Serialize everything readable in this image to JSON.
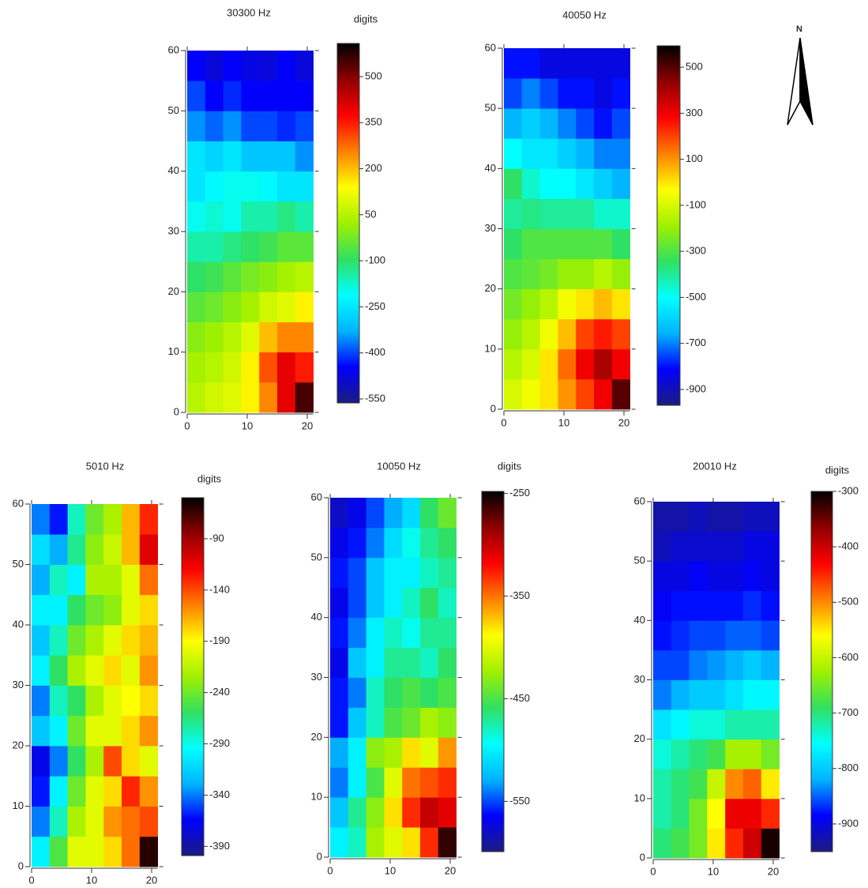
{
  "colormap": [
    "#1c1c80",
    "#0000ff",
    "#00b4ff",
    "#00ffff",
    "#30e060",
    "#a0f000",
    "#ffff00",
    "#ff8000",
    "#ff0000",
    "#900000",
    "#000000"
  ],
  "north_arrow": {
    "label": "N"
  },
  "chart_data": [
    {
      "type": "heatmap",
      "title": "30300 Hz",
      "colorbar_label": "digits",
      "xlim": [
        0,
        21
      ],
      "xticks": [
        0,
        10,
        20
      ],
      "ylim": [
        0,
        60
      ],
      "yticks": [
        0,
        10,
        20,
        30,
        40,
        50,
        60
      ],
      "clim": [
        -563,
        608
      ],
      "cticks": [
        -550,
        -400,
        -250,
        -100,
        50,
        200,
        350,
        500
      ],
      "x": [
        1.5,
        4.5,
        7.5,
        10.5,
        13.5,
        16.5,
        19.5
      ],
      "y": [
        2.5,
        7.5,
        12.5,
        17.5,
        22.5,
        27.5,
        32.5,
        37.5,
        42.5,
        47.5,
        52.5,
        57.5
      ],
      "z": [
        [
          50,
          80,
          100,
          150,
          250,
          400,
          550
        ],
        [
          30,
          50,
          80,
          150,
          300,
          400,
          350
        ],
        [
          0,
          20,
          50,
          100,
          200,
          250,
          250
        ],
        [
          -50,
          -30,
          0,
          30,
          80,
          100,
          150
        ],
        [
          -100,
          -80,
          -50,
          -20,
          0,
          30,
          50
        ],
        [
          -150,
          -150,
          -120,
          -100,
          -80,
          -50,
          -50
        ],
        [
          -200,
          -180,
          -200,
          -150,
          -150,
          -120,
          -150
        ],
        [
          -250,
          -220,
          -200,
          -200,
          -220,
          -250,
          -250
        ],
        [
          -250,
          -280,
          -250,
          -300,
          -300,
          -300,
          -350
        ],
        [
          -350,
          -380,
          -350,
          -400,
          -400,
          -420,
          -400
        ],
        [
          -400,
          -450,
          -420,
          -450,
          -450,
          -450,
          -450
        ],
        [
          -450,
          -480,
          -450,
          -470,
          -480,
          -450,
          -480
        ]
      ]
    },
    {
      "type": "heatmap",
      "title": "40050 Hz",
      "xlim": [
        0,
        21
      ],
      "xticks": [
        0,
        10,
        20
      ],
      "ylim": [
        0,
        60
      ],
      "yticks": [
        0,
        10,
        20,
        30,
        40,
        50,
        60
      ],
      "clim": [
        -969,
        593
      ],
      "cticks": [
        -900,
        -700,
        -500,
        -300,
        -100,
        100,
        300,
        500
      ],
      "x": [
        1.5,
        4.5,
        7.5,
        10.5,
        13.5,
        16.5,
        19.5
      ],
      "y": [
        2.5,
        7.5,
        12.5,
        17.5,
        22.5,
        27.5,
        32.5,
        37.5,
        42.5,
        47.5,
        52.5,
        57.5
      ],
      "z": [
        [
          -100,
          -50,
          0,
          100,
          200,
          300,
          500
        ],
        [
          -150,
          -100,
          0,
          150,
          300,
          400,
          300
        ],
        [
          -200,
          -150,
          -50,
          50,
          200,
          250,
          200
        ],
        [
          -250,
          -200,
          -150,
          -50,
          0,
          50,
          0
        ],
        [
          -300,
          -280,
          -250,
          -200,
          -200,
          -150,
          -200
        ],
        [
          -350,
          -300,
          -300,
          -300,
          -300,
          -300,
          -350
        ],
        [
          -400,
          -380,
          -400,
          -400,
          -400,
          -450,
          -450
        ],
        [
          -350,
          -450,
          -500,
          -500,
          -550,
          -600,
          -650
        ],
        [
          -500,
          -550,
          -550,
          -600,
          -650,
          -700,
          -700
        ],
        [
          -650,
          -600,
          -650,
          -700,
          -750,
          -800,
          -750
        ],
        [
          -750,
          -700,
          -750,
          -800,
          -800,
          -850,
          -800
        ],
        [
          -800,
          -800,
          -850,
          -850,
          -850,
          -850,
          -850
        ]
      ]
    },
    {
      "type": "heatmap",
      "title": "5010 Hz",
      "colorbar_label": "digits",
      "xlim": [
        0,
        21
      ],
      "xticks": [
        0,
        10,
        20
      ],
      "ylim": [
        0,
        60
      ],
      "yticks": [
        0,
        10,
        20,
        30,
        40,
        50,
        60
      ],
      "clim": [
        -399,
        -50
      ],
      "cticks": [
        -390,
        -340,
        -290,
        -240,
        -190,
        -140,
        -90
      ],
      "x": [
        1.5,
        4.5,
        7.5,
        10.5,
        13.5,
        16.5,
        19.5
      ],
      "y": [
        2.5,
        7.5,
        12.5,
        17.5,
        22.5,
        27.5,
        32.5,
        37.5,
        42.5,
        47.5,
        52.5,
        57.5
      ],
      "z": [
        [
          -300,
          -250,
          -200,
          -200,
          -180,
          -150,
          -60
        ],
        [
          -340,
          -280,
          -220,
          -200,
          -160,
          -150,
          -140
        ],
        [
          -360,
          -300,
          -240,
          -200,
          -180,
          -130,
          -160
        ],
        [
          -370,
          -340,
          -260,
          -220,
          -140,
          -180,
          -200
        ],
        [
          -320,
          -300,
          -240,
          -200,
          -200,
          -180,
          -160
        ],
        [
          -340,
          -280,
          -260,
          -220,
          -200,
          -190,
          -180
        ],
        [
          -300,
          -260,
          -220,
          -200,
          -180,
          -200,
          -160
        ],
        [
          -320,
          -280,
          -240,
          -220,
          -200,
          -180,
          -170
        ],
        [
          -300,
          -300,
          -260,
          -240,
          -230,
          -200,
          -180
        ],
        [
          -330,
          -280,
          -300,
          -220,
          -220,
          -200,
          -150
        ],
        [
          -310,
          -330,
          -270,
          -230,
          -210,
          -170,
          -110
        ],
        [
          -340,
          -360,
          -280,
          -240,
          -220,
          -170,
          -130
        ]
      ]
    },
    {
      "type": "heatmap",
      "title": "10050 Hz",
      "colorbar_label": "digits",
      "xlim": [
        0,
        21
      ],
      "xticks": [
        0,
        10,
        20
      ],
      "ylim": [
        0,
        60
      ],
      "yticks": [
        0,
        10,
        20,
        30,
        40,
        50,
        60
      ],
      "clim": [
        -599,
        -248
      ],
      "cticks": [
        -550,
        -450,
        -350,
        -250
      ],
      "x": [
        1.5,
        4.5,
        7.5,
        10.5,
        13.5,
        16.5,
        19.5
      ],
      "y": [
        2.5,
        7.5,
        12.5,
        17.5,
        22.5,
        27.5,
        32.5,
        37.5,
        42.5,
        47.5,
        52.5,
        57.5
      ],
      "z": [
        [
          -500,
          -480,
          -420,
          -400,
          -380,
          -330,
          -260
        ],
        [
          -520,
          -470,
          -430,
          -380,
          -330,
          -300,
          -310
        ],
        [
          -540,
          -500,
          -450,
          -400,
          -350,
          -340,
          -330
        ],
        [
          -530,
          -500,
          -430,
          -420,
          -380,
          -400,
          -360
        ],
        [
          -560,
          -520,
          -480,
          -450,
          -440,
          -420,
          -430
        ],
        [
          -560,
          -540,
          -480,
          -460,
          -450,
          -460,
          -450
        ],
        [
          -570,
          -520,
          -500,
          -470,
          -470,
          -480,
          -460
        ],
        [
          -560,
          -540,
          -500,
          -480,
          -490,
          -470,
          -470
        ],
        [
          -570,
          -550,
          -520,
          -500,
          -480,
          -460,
          -480
        ],
        [
          -560,
          -550,
          -520,
          -500,
          -500,
          -480,
          -470
        ],
        [
          -570,
          -560,
          -540,
          -510,
          -490,
          -470,
          -460
        ],
        [
          -580,
          -570,
          -550,
          -530,
          -510,
          -460,
          -440
        ]
      ]
    },
    {
      "type": "heatmap",
      "title": "20010 Hz",
      "colorbar_label": "digits",
      "xlim": [
        0,
        21
      ],
      "xticks": [
        0,
        10,
        20
      ],
      "ylim": [
        0,
        60
      ],
      "yticks": [
        0,
        10,
        20,
        30,
        40,
        50,
        60
      ],
      "clim": [
        -950,
        -300
      ],
      "cticks": [
        -900,
        -800,
        -700,
        -600,
        -500,
        -400,
        -300
      ],
      "x": [
        1.5,
        4.5,
        7.5,
        10.5,
        13.5,
        16.5,
        19.5
      ],
      "y": [
        2.5,
        7.5,
        12.5,
        17.5,
        22.5,
        27.5,
        32.5,
        37.5,
        42.5,
        47.5,
        52.5,
        57.5
      ],
      "z": [
        [
          -700,
          -680,
          -650,
          -550,
          -450,
          -400,
          -310
        ],
        [
          -720,
          -700,
          -650,
          -560,
          -420,
          -420,
          -450
        ],
        [
          -720,
          -700,
          -680,
          -600,
          -500,
          -480,
          -550
        ],
        [
          -740,
          -720,
          -700,
          -680,
          -620,
          -620,
          -650
        ],
        [
          -780,
          -760,
          -740,
          -740,
          -720,
          -720,
          -720
        ],
        [
          -840,
          -820,
          -800,
          -800,
          -780,
          -760,
          -760
        ],
        [
          -860,
          -860,
          -840,
          -830,
          -820,
          -800,
          -820
        ],
        [
          -880,
          -870,
          -860,
          -860,
          -850,
          -850,
          -860
        ],
        [
          -890,
          -880,
          -880,
          -880,
          -880,
          -870,
          -880
        ],
        [
          -900,
          -900,
          -890,
          -900,
          -900,
          -890,
          -900
        ],
        [
          -920,
          -910,
          -910,
          -910,
          -910,
          -900,
          -900
        ],
        [
          -930,
          -930,
          -920,
          -930,
          -930,
          -920,
          -920
        ]
      ]
    }
  ]
}
